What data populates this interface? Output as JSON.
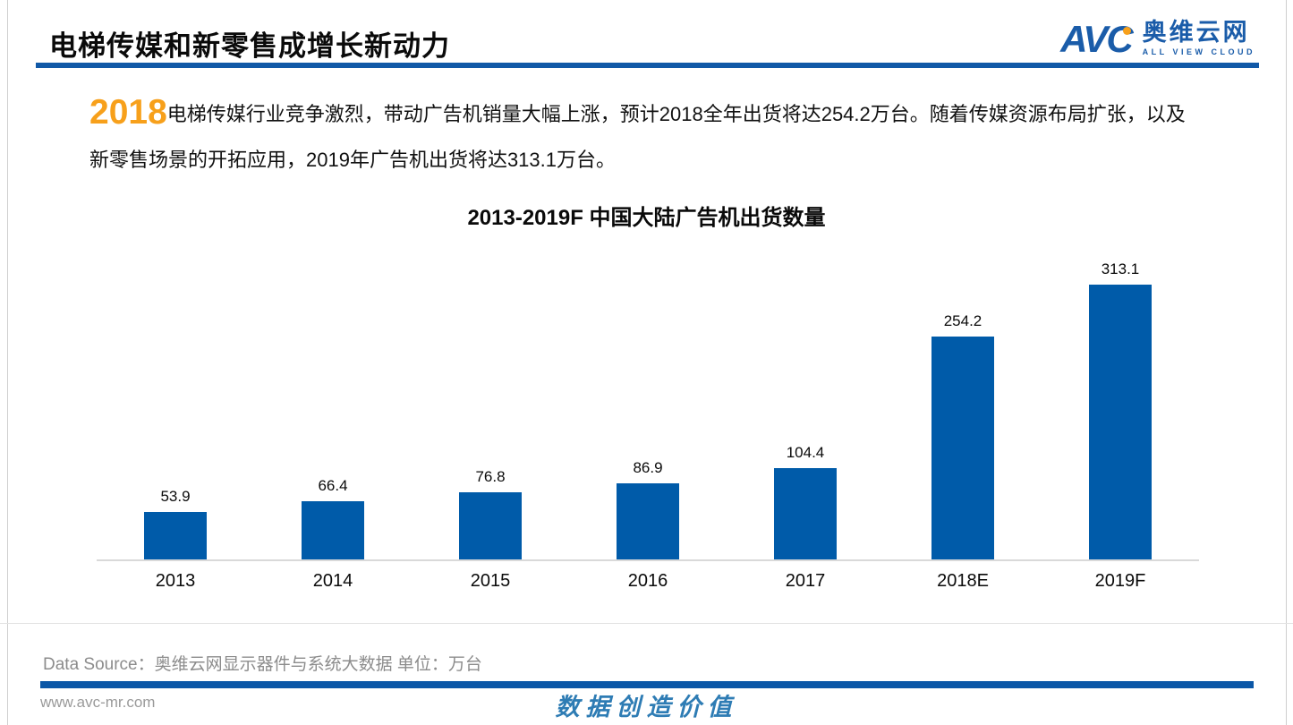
{
  "page": {
    "title": "电梯传媒和新零售成增长新动力",
    "website": "www.avc-mr.com",
    "slogan": "数据创造价值",
    "data_source_label": "Data Source：奥维云网显示器件与系统大数据  单位：万台"
  },
  "logo": {
    "abbr": "AVC",
    "cn_name": "奥维云网",
    "en_name": "ALL VIEW CLOUD"
  },
  "intro": {
    "highlight_year": "2018",
    "text": "电梯传媒行业竞争激烈，带动广告机销量大幅上涨，预计2018全年出货将达254.2万台。随着传媒资源布局扩张，以及新零售场景的开拓应用，2019年广告机出货将达313.1万台。"
  },
  "chart_data": {
    "type": "bar",
    "title": "2013-2019F 中国大陆广告机出货数量",
    "categories": [
      "2013",
      "2014",
      "2015",
      "2016",
      "2017",
      "2018E",
      "2019F"
    ],
    "values": [
      53.9,
      66.4,
      76.8,
      86.9,
      104.4,
      254.2,
      313.1
    ],
    "unit": "万台",
    "xlabel": "",
    "ylabel": "",
    "ylim": [
      0,
      320
    ],
    "grid": false,
    "legend": false,
    "data_labels": true,
    "bar_color": "#005ba9",
    "axis_line_color": "#d9d9d9"
  },
  "colors": {
    "brand_blue": "#1a5ca9",
    "accent_orange": "#f7a01b",
    "rule_blue": "#0b57a7",
    "slogan_blue": "#2e7cb4"
  }
}
